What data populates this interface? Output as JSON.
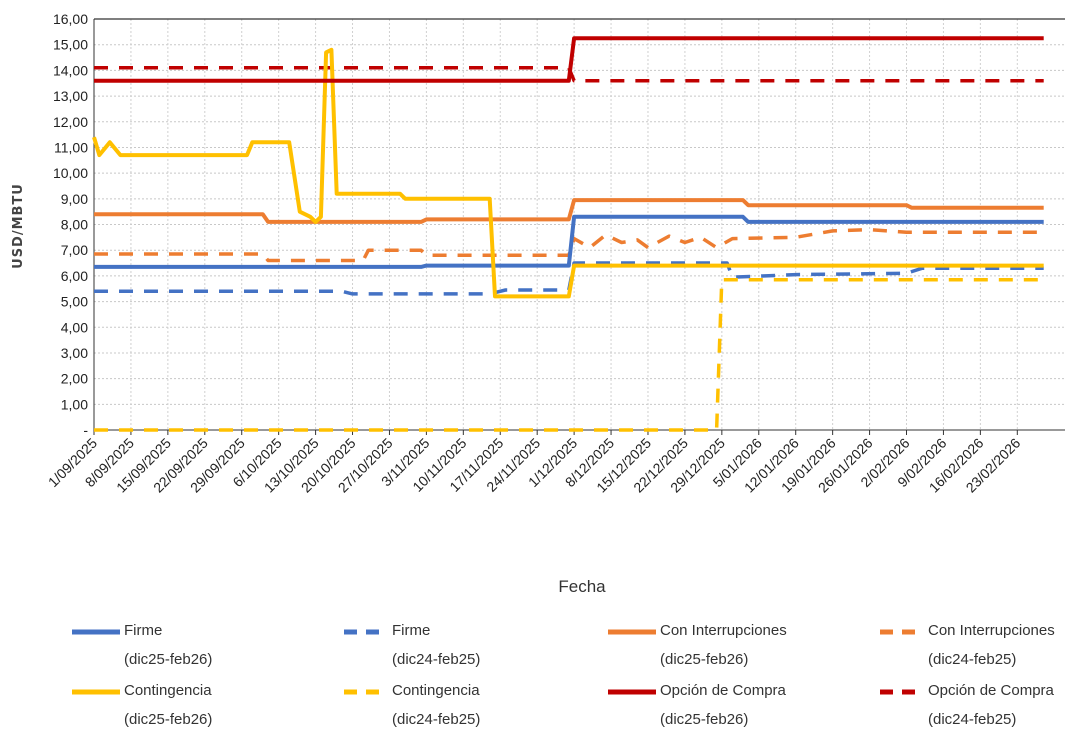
{
  "chart_data": {
    "type": "line",
    "xlabel": "Fecha",
    "ylabel": "USD/MBTU",
    "ylim": [
      0,
      16
    ],
    "y_ticks": [
      "-",
      "1,00",
      "2,00",
      "3,00",
      "4,00",
      "5,00",
      "6,00",
      "7,00",
      "8,00",
      "9,00",
      "10,00",
      "11,00",
      "12,00",
      "13,00",
      "14,00",
      "15,00",
      "16,00"
    ],
    "x_range": [
      "1/09/2025",
      "28/02/2026"
    ],
    "x_ticks": [
      "1/09/2025",
      "8/09/2025",
      "15/09/2025",
      "22/09/2025",
      "29/09/2025",
      "6/10/2025",
      "13/10/2025",
      "20/10/2025",
      "27/10/2025",
      "3/11/2025",
      "10/11/2025",
      "17/11/2025",
      "24/11/2025",
      "1/12/2025",
      "8/12/2025",
      "15/12/2025",
      "22/12/2025",
      "29/12/2025",
      "5/01/2026",
      "12/01/2026",
      "19/01/2026",
      "26/01/2026",
      "2/02/2026",
      "9/02/2026",
      "16/02/2026",
      "23/02/2026"
    ],
    "grid": true,
    "legend_position": "bottom",
    "series": [
      {
        "name": "Firme",
        "name_line2": "(dic25-feb26)",
        "color": "#4472C4",
        "style": "solid",
        "points": [
          [
            "1/09/2025",
            6.35
          ],
          [
            "2/11/2025",
            6.35
          ],
          [
            "3/11/2025",
            6.4
          ],
          [
            "30/11/2025",
            6.4
          ],
          [
            "1/12/2025",
            8.3
          ],
          [
            "2/01/2026",
            8.3
          ],
          [
            "3/01/2026",
            8.1
          ],
          [
            "28/02/2026",
            8.1
          ]
        ]
      },
      {
        "name": "Firme",
        "name_line2": "(dic24-feb25)",
        "color": "#4472C4",
        "style": "dashed",
        "points": [
          [
            "1/09/2025",
            5.4
          ],
          [
            "18/10/2025",
            5.4
          ],
          [
            "20/10/2025",
            5.3
          ],
          [
            "15/11/2025",
            5.3
          ],
          [
            "18/11/2025",
            5.45
          ],
          [
            "30/11/2025",
            5.45
          ],
          [
            "1/12/2025",
            6.5
          ],
          [
            "30/12/2025",
            6.5
          ],
          [
            "31/12/2025",
            5.95
          ],
          [
            "12/01/2026",
            6.05
          ],
          [
            "2/02/2026",
            6.1
          ],
          [
            "5/02/2026",
            6.3
          ],
          [
            "28/02/2026",
            6.3
          ]
        ]
      },
      {
        "name": "Con Interrupciones",
        "name_line2": "(dic25-feb26)",
        "color": "#ED7D31",
        "style": "solid",
        "points": [
          [
            "1/09/2025",
            8.4
          ],
          [
            "3/10/2025",
            8.4
          ],
          [
            "4/10/2025",
            8.1
          ],
          [
            "2/11/2025",
            8.1
          ],
          [
            "3/11/2025",
            8.2
          ],
          [
            "30/11/2025",
            8.2
          ],
          [
            "1/12/2025",
            8.95
          ],
          [
            "2/01/2026",
            8.95
          ],
          [
            "3/01/2026",
            8.75
          ],
          [
            "2/02/2026",
            8.75
          ],
          [
            "3/02/2026",
            8.65
          ],
          [
            "28/02/2026",
            8.65
          ]
        ]
      },
      {
        "name": "Con Interrupciones",
        "name_line2": "(dic24-feb25)",
        "color": "#ED7D31",
        "style": "dashed",
        "points": [
          [
            "1/09/2025",
            6.85
          ],
          [
            "3/10/2025",
            6.85
          ],
          [
            "4/10/2025",
            6.6
          ],
          [
            "22/10/2025",
            6.6
          ],
          [
            "23/10/2025",
            7.0
          ],
          [
            "2/11/2025",
            7.0
          ],
          [
            "3/11/2025",
            6.8
          ],
          [
            "30/11/2025",
            6.8
          ],
          [
            "1/12/2025",
            7.45
          ],
          [
            "4/12/2025",
            7.1
          ],
          [
            "7/12/2025",
            7.6
          ],
          [
            "10/12/2025",
            7.3
          ],
          [
            "13/12/2025",
            7.4
          ],
          [
            "15/12/2025",
            7.1
          ],
          [
            "19/12/2025",
            7.55
          ],
          [
            "22/12/2025",
            7.3
          ],
          [
            "25/12/2025",
            7.5
          ],
          [
            "28/12/2025",
            7.1
          ],
          [
            "31/12/2025",
            7.45
          ],
          [
            "12/01/2026",
            7.5
          ],
          [
            "19/01/2026",
            7.75
          ],
          [
            "26/01/2026",
            7.8
          ],
          [
            "2/02/2026",
            7.7
          ],
          [
            "28/02/2026",
            7.7
          ]
        ]
      },
      {
        "name": "Contingencia",
        "name_line2": "(dic25-feb26)",
        "color": "#FFC000",
        "style": "solid",
        "points": [
          [
            "1/09/2025",
            11.4
          ],
          [
            "2/09/2025",
            10.7
          ],
          [
            "4/09/2025",
            11.2
          ],
          [
            "6/09/2025",
            10.7
          ],
          [
            "30/09/2025",
            10.7
          ],
          [
            "1/10/2025",
            11.2
          ],
          [
            "8/10/2025",
            11.2
          ],
          [
            "10/10/2025",
            8.5
          ],
          [
            "12/10/2025",
            8.3
          ],
          [
            "13/10/2025",
            8.1
          ],
          [
            "14/10/2025",
            8.3
          ],
          [
            "15/10/2025",
            14.7
          ],
          [
            "16/10/2025",
            14.8
          ],
          [
            "17/10/2025",
            9.2
          ],
          [
            "29/10/2025",
            9.2
          ],
          [
            "30/10/2025",
            9.0
          ],
          [
            "15/11/2025",
            9.0
          ],
          [
            "16/11/2025",
            5.2
          ],
          [
            "30/11/2025",
            5.2
          ],
          [
            "1/12/2025",
            6.4
          ],
          [
            "28/02/2026",
            6.4
          ]
        ]
      },
      {
        "name": "Contingencia",
        "name_line2": "(dic24-feb25)",
        "color": "#FFC000",
        "style": "dashed",
        "points": [
          [
            "1/09/2025",
            0
          ],
          [
            "28/12/2025",
            0
          ],
          [
            "29/12/2025",
            5.85
          ],
          [
            "28/02/2026",
            5.85
          ]
        ]
      },
      {
        "name": "Opción de Compra",
        "name_line2": "(dic25-feb26)",
        "color": "#C00000",
        "style": "solid",
        "points": [
          [
            "1/09/2025",
            13.6
          ],
          [
            "30/11/2025",
            13.6
          ],
          [
            "1/12/2025",
            15.25
          ],
          [
            "28/02/2026",
            15.25
          ]
        ]
      },
      {
        "name": "Opción de Compra",
        "name_line2": "(dic24-feb25)",
        "color": "#C00000",
        "style": "dashed",
        "points": [
          [
            "1/09/2025",
            14.1
          ],
          [
            "30/11/2025",
            14.1
          ],
          [
            "1/12/2025",
            13.6
          ],
          [
            "28/02/2026",
            13.6
          ]
        ]
      }
    ]
  }
}
